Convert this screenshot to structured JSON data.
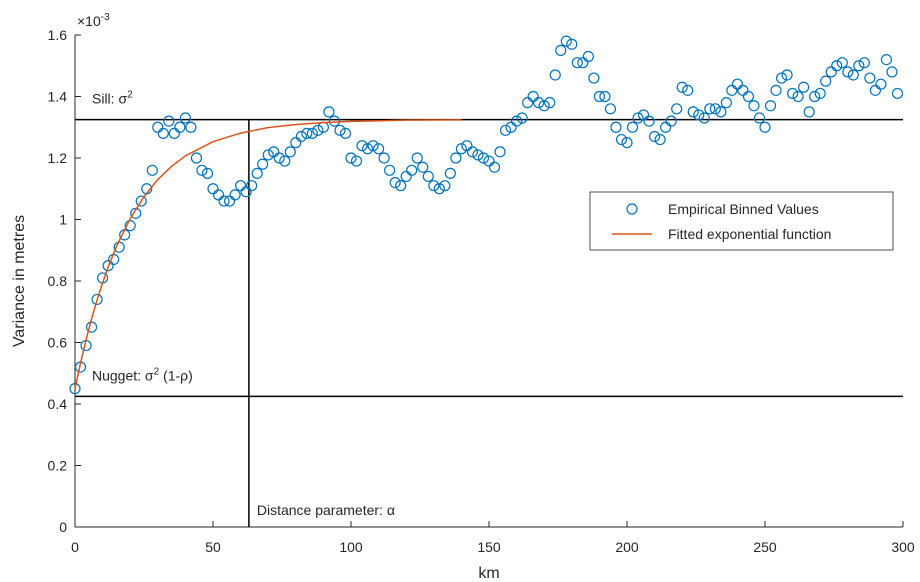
{
  "chart_data": {
    "type": "scatter",
    "x_label": "km",
    "y_label": "Variance in metres",
    "y_exponent": {
      "base": "×10",
      "power": "-3"
    },
    "xlim": [
      0,
      300
    ],
    "ylim": [
      0,
      1.6
    ],
    "xticks": [
      0,
      50,
      100,
      150,
      200,
      250,
      300
    ],
    "yticks": [
      0,
      0.2,
      0.4,
      0.6,
      0.8,
      1,
      1.2,
      1.4,
      1.6
    ],
    "legend_position": "right",
    "series": [
      {
        "type": "scatter",
        "name": "Empirical Binned Values",
        "color": "#0072BD",
        "x": [
          0,
          2,
          4,
          6,
          8,
          10,
          12,
          14,
          16,
          18,
          20,
          22,
          24,
          26,
          28,
          30,
          32,
          34,
          36,
          38,
          40,
          42,
          44,
          46,
          48,
          50,
          52,
          54,
          56,
          58,
          60,
          62,
          64,
          66,
          68,
          70,
          72,
          74,
          76,
          78,
          80,
          82,
          84,
          86,
          88,
          90,
          92,
          94,
          96,
          98,
          100,
          102,
          104,
          106,
          108,
          110,
          112,
          114,
          116,
          118,
          120,
          122,
          124,
          126,
          128,
          130,
          132,
          134,
          136,
          138,
          140,
          142,
          144,
          146,
          148,
          150,
          152,
          154,
          156,
          158,
          160,
          162,
          164,
          166,
          168,
          170,
          172,
          174,
          176,
          178,
          180,
          182,
          184,
          186,
          188,
          190,
          192,
          194,
          196,
          198,
          200,
          202,
          204,
          206,
          208,
          210,
          212,
          214,
          216,
          218,
          220,
          222,
          224,
          226,
          228,
          230,
          232,
          234,
          236,
          238,
          240,
          242,
          244,
          246,
          248,
          250,
          252,
          254,
          256,
          258,
          260,
          262,
          264,
          266,
          268,
          270,
          272,
          274,
          276,
          278,
          280,
          282,
          284,
          286,
          288,
          290,
          292,
          294,
          296,
          298
        ],
        "values": [
          0.45,
          0.52,
          0.59,
          0.65,
          0.74,
          0.81,
          0.85,
          0.87,
          0.91,
          0.95,
          0.98,
          1.02,
          1.06,
          1.1,
          1.16,
          1.3,
          1.28,
          1.32,
          1.28,
          1.3,
          1.33,
          1.3,
          1.2,
          1.16,
          1.15,
          1.1,
          1.08,
          1.06,
          1.06,
          1.08,
          1.11,
          1.09,
          1.11,
          1.15,
          1.18,
          1.21,
          1.22,
          1.2,
          1.19,
          1.22,
          1.25,
          1.27,
          1.28,
          1.28,
          1.29,
          1.3,
          1.35,
          1.32,
          1.29,
          1.28,
          1.2,
          1.19,
          1.24,
          1.23,
          1.24,
          1.23,
          1.2,
          1.16,
          1.12,
          1.11,
          1.14,
          1.16,
          1.2,
          1.17,
          1.14,
          1.11,
          1.1,
          1.11,
          1.15,
          1.2,
          1.23,
          1.24,
          1.22,
          1.21,
          1.2,
          1.19,
          1.17,
          1.22,
          1.29,
          1.3,
          1.32,
          1.33,
          1.38,
          1.4,
          1.38,
          1.37,
          1.38,
          1.47,
          1.55,
          1.58,
          1.57,
          1.51,
          1.51,
          1.53,
          1.46,
          1.4,
          1.4,
          1.36,
          1.3,
          1.26,
          1.25,
          1.3,
          1.33,
          1.34,
          1.32,
          1.27,
          1.26,
          1.3,
          1.32,
          1.36,
          1.43,
          1.42,
          1.35,
          1.34,
          1.33,
          1.36,
          1.36,
          1.35,
          1.38,
          1.42,
          1.44,
          1.42,
          1.4,
          1.37,
          1.33,
          1.3,
          1.37,
          1.42,
          1.46,
          1.47,
          1.41,
          1.4,
          1.43,
          1.35,
          1.4,
          1.41,
          1.45,
          1.48,
          1.5,
          1.51,
          1.48,
          1.47,
          1.5,
          1.51,
          1.46,
          1.42,
          1.44,
          1.52,
          1.48,
          1.41
        ]
      },
      {
        "type": "line",
        "name": "Fitted exponential function",
        "color": "#D95319",
        "x": [
          0,
          2,
          4,
          6,
          8,
          10,
          12,
          15,
          20,
          25,
          30,
          35,
          40,
          50,
          60,
          70,
          80,
          90,
          100,
          120,
          140
        ],
        "values": [
          0.45,
          0.533,
          0.608,
          0.677,
          0.738,
          0.794,
          0.845,
          0.912,
          1.003,
          1.074,
          1.13,
          1.173,
          1.207,
          1.253,
          1.281,
          1.299,
          1.309,
          1.315,
          1.319,
          1.323,
          1.324
        ]
      }
    ],
    "annotations": [
      {
        "axis": "y",
        "value": 1.325,
        "text": "Sill: σ",
        "sup": "2"
      },
      {
        "axis": "y",
        "value": 0.425,
        "text": "Nugget: σ",
        "sup": "2",
        "suffix": " (1-ρ)"
      },
      {
        "axis": "x",
        "value": 63,
        "text": "Distance parameter: α"
      }
    ]
  }
}
